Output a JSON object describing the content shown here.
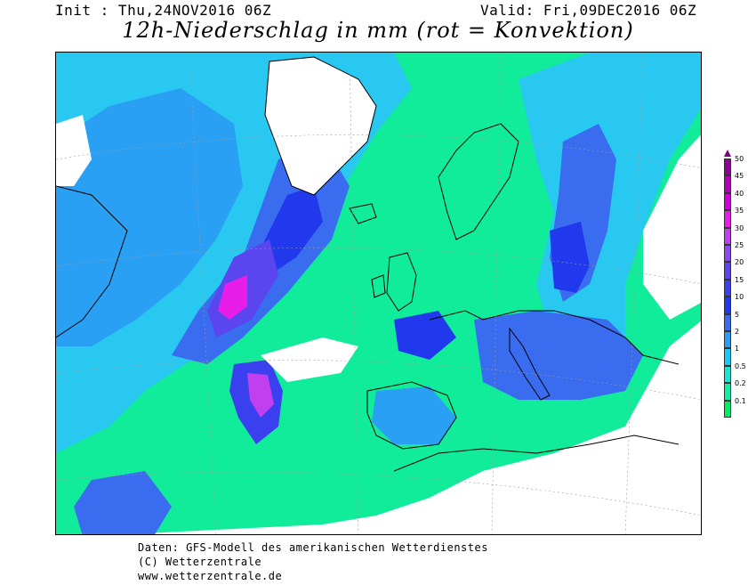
{
  "header": {
    "init": "Init : Thu,24NOV2016 06Z",
    "valid": "Valid: Fri,09DEC2016 06Z",
    "title": "12h-Niederschlag in mm (rot = Konvektion)"
  },
  "legend": {
    "levels": [
      "50",
      "45",
      "40",
      "35",
      "30",
      "25",
      "20",
      "15",
      "10",
      "5",
      "2",
      "1",
      "0.5",
      "0.2",
      "0.1"
    ],
    "colors": [
      "#8f0096",
      "#b000b8",
      "#d000d8",
      "#e81ee8",
      "#c040f0",
      "#8a4bf0",
      "#5a45ee",
      "#3a40ee",
      "#2238ec",
      "#3a6cf0",
      "#2a9cf5",
      "#18c8f8",
      "#18e6d2",
      "#10f0a0",
      "#00ee60"
    ]
  },
  "footer": {
    "line1": "Daten: GFS-Modell des amerikanischen Wetterdienstes",
    "line2": "(C) Wetterzentrale",
    "line3": "www.wetterzentrale.de"
  }
}
